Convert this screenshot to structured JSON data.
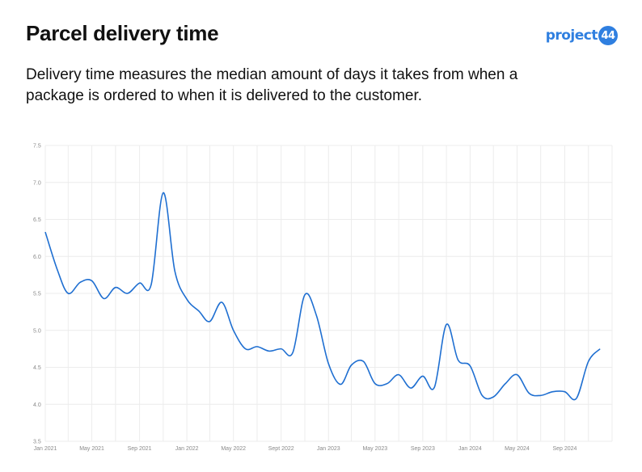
{
  "header": {
    "title": "Parcel delivery time",
    "subtitle": "Delivery time measures the median amount of days it takes from when a package is ordered to when it is delivered to the customer.",
    "logo_text": "project",
    "logo_badge": "44"
  },
  "colors": {
    "series": "#1f6fd1",
    "logo": "#2f7fe0",
    "grid": "#ececec"
  },
  "chart_data": {
    "type": "line",
    "title": "",
    "xlabel": "",
    "ylabel": "",
    "ylim": [
      3.5,
      7.5
    ],
    "yticks": [
      "3.5",
      "4.0",
      "4.5",
      "5.0",
      "5.5",
      "6.0",
      "6.5",
      "7.0",
      "7.5"
    ],
    "xlim": [
      "2021-01-01",
      "2025-01-01"
    ],
    "xticks": [
      "Jan 2021",
      "May 2021",
      "Sep 2021",
      "Jan 2022",
      "May 2022",
      "Sept 2022",
      "Jan 2023",
      "May 2023",
      "Sep 2023",
      "Jan 2024",
      "May 2024",
      "Sep 2024"
    ],
    "grid": true,
    "series": [
      {
        "x": [
          "2021-01-01",
          "2021-02-01",
          "2021-03-01",
          "2021-04-01",
          "2021-05-01",
          "2021-06-01",
          "2021-07-01",
          "2021-08-01",
          "2021-09-01",
          "2021-10-01",
          "2021-11-01",
          "2021-12-01",
          "2022-01-01",
          "2022-02-01",
          "2022-03-01",
          "2022-04-01",
          "2022-05-01",
          "2022-06-01",
          "2022-07-01",
          "2022-08-01",
          "2022-09-01",
          "2022-10-01",
          "2022-11-01",
          "2022-12-01",
          "2023-01-01",
          "2023-02-01",
          "2023-03-01",
          "2023-04-01",
          "2023-05-01",
          "2023-06-01",
          "2023-07-01",
          "2023-08-01",
          "2023-09-01",
          "2023-10-01",
          "2023-11-01",
          "2023-12-01",
          "2024-01-01",
          "2024-02-01",
          "2024-03-01",
          "2024-04-01",
          "2024-05-01",
          "2024-06-01",
          "2024-07-01",
          "2024-08-01",
          "2024-09-01",
          "2024-10-01",
          "2024-11-01",
          "2024-12-01"
        ],
        "values": [
          6.33,
          5.82,
          5.5,
          5.65,
          5.67,
          5.43,
          5.58,
          5.5,
          5.64,
          5.62,
          6.86,
          5.8,
          5.42,
          5.26,
          5.12,
          5.38,
          5.0,
          4.75,
          4.78,
          4.72,
          4.75,
          4.7,
          5.48,
          5.2,
          4.55,
          4.27,
          4.53,
          4.58,
          4.28,
          4.28,
          4.4,
          4.22,
          4.38,
          4.23,
          5.08,
          4.6,
          4.52,
          4.12,
          4.1,
          4.28,
          4.4,
          4.15,
          4.12,
          4.17,
          4.17,
          4.08,
          4.58,
          4.75
        ]
      }
    ]
  }
}
